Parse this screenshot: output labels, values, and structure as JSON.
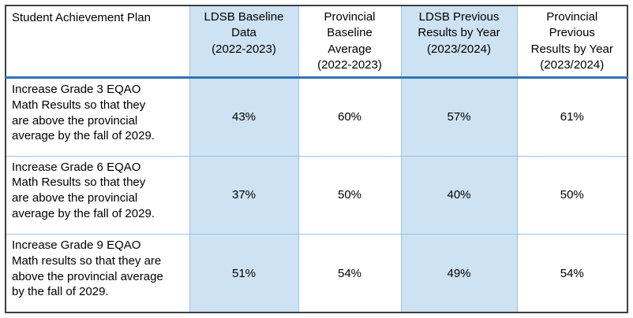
{
  "colors": {
    "highlight": "#cde2f2",
    "grid": "#9cc2e5",
    "header_rule": "#2e74b5",
    "outer_border": "#3f3f3f"
  },
  "table": {
    "headers": [
      "Student Achievement Plan",
      "LDSB Baseline\nData\n(2022-2023)",
      "Provincial\nBaseline\nAverage\n(2022-2023)",
      "LDSB Previous\nResults by Year\n(2023/2024)",
      "Provincial\nPrevious\nResults by Year\n(2023/2024)"
    ],
    "rows": [
      {
        "goal": "Increase Grade 3 EQAO\nMath Results so that they\nare above the provincial\naverage by the fall of 2029.",
        "ldsb_baseline": "43%",
        "prov_baseline": "60%",
        "ldsb_previous": "57%",
        "prov_previous": "61%"
      },
      {
        "goal": "Increase Grade 6 EQAO\nMath Results so that they\nare above the provincial\naverage by the fall of 2029.",
        "ldsb_baseline": "37%",
        "prov_baseline": "50%",
        "ldsb_previous": "40%",
        "prov_previous": "50%"
      },
      {
        "goal": "Increase Grade 9 EQAO\nMath results so that they are\nabove the provincial average\nby the fall of 2029.",
        "ldsb_baseline": "51%",
        "prov_baseline": "54%",
        "ldsb_previous": "49%",
        "prov_previous": "54%"
      }
    ]
  }
}
